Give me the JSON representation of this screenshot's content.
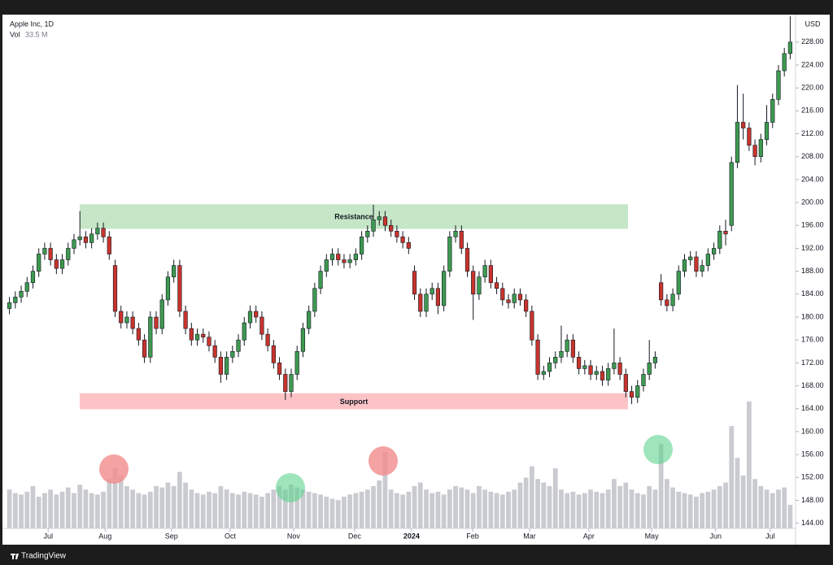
{
  "header": {
    "symbol": "Apple Inc, 1D",
    "vol_label": "Vol",
    "vol_value": "33.5 M",
    "currency": "USD"
  },
  "footer": {
    "brand": "TradingView"
  },
  "chart_data": {
    "type": "candlestick",
    "ylim": [
      143.1,
      232.8
    ],
    "yticks": [
      {
        "value": 144,
        "label": "144.00"
      },
      {
        "value": 148,
        "label": "148.00"
      },
      {
        "value": 152,
        "label": "152.00"
      },
      {
        "value": 156,
        "label": "156.00"
      },
      {
        "value": 160,
        "label": "160.00"
      },
      {
        "value": 164,
        "label": "164.00"
      },
      {
        "value": 168,
        "label": "168.00"
      },
      {
        "value": 172,
        "label": "172.00"
      },
      {
        "value": 176,
        "label": "176.00"
      },
      {
        "value": 180,
        "label": "180.00"
      },
      {
        "value": 184,
        "label": "184.00"
      },
      {
        "value": 188,
        "label": "188.00"
      },
      {
        "value": 192,
        "label": "192.00"
      },
      {
        "value": 196,
        "label": "196.00"
      },
      {
        "value": 200,
        "label": "200.00"
      },
      {
        "value": 204,
        "label": "204.00"
      },
      {
        "value": 208,
        "label": "208.00"
      },
      {
        "value": 212,
        "label": "212.00"
      },
      {
        "value": 216,
        "label": "216.00"
      },
      {
        "value": 220,
        "label": "220.00"
      },
      {
        "value": 224,
        "label": "224.00"
      },
      {
        "value": 228,
        "label": "228.00"
      }
    ],
    "xlim": [
      0,
      134
    ],
    "xticks": [
      {
        "value": 6.6,
        "label": "Jul"
      },
      {
        "value": 16.3,
        "label": "Aug"
      },
      {
        "value": 27.6,
        "label": "Sep"
      },
      {
        "value": 37.6,
        "label": "Oct"
      },
      {
        "value": 48.4,
        "label": "Nov"
      },
      {
        "value": 58.8,
        "label": "Dec"
      },
      {
        "value": 68.5,
        "label": "2024"
      },
      {
        "value": 78.9,
        "label": "Feb"
      },
      {
        "value": 88.6,
        "label": "Mar"
      },
      {
        "value": 98.7,
        "label": "Apr"
      },
      {
        "value": 109.4,
        "label": "May"
      },
      {
        "value": 120.3,
        "label": "Jun"
      },
      {
        "value": 129.6,
        "label": "Jul"
      }
    ],
    "up_color": "#3d9a50",
    "down_color": "#c8342c",
    "volume_color": "#c9cbd0",
    "vlim": [
      0,
      190
    ],
    "open": [
      181.5,
      182.5,
      183.5,
      184.5,
      186,
      188,
      191,
      192,
      190,
      188.5,
      190,
      192,
      193.5,
      194,
      193,
      194.5,
      195.5,
      194,
      189,
      181,
      179,
      180,
      178,
      176,
      173,
      180,
      178,
      183,
      187,
      189,
      181,
      178,
      176,
      177,
      176.5,
      175,
      173,
      170,
      173,
      174,
      176,
      179,
      181,
      180,
      177,
      175,
      172,
      170,
      167,
      170,
      174,
      178,
      181,
      185,
      188,
      190,
      191,
      190,
      189.5,
      190,
      191,
      194,
      195,
      197,
      197.5,
      196,
      195,
      194,
      193,
      188,
      184,
      181,
      184,
      185,
      182,
      188,
      194,
      195,
      192,
      188,
      184,
      187,
      189,
      186,
      185,
      183,
      182.5,
      184,
      183,
      181,
      176,
      170,
      170.5,
      172,
      173,
      174,
      176,
      173,
      171,
      171.5,
      170,
      170.5,
      169,
      171,
      172,
      170,
      167,
      166,
      168,
      170,
      172,
      186,
      183,
      182,
      184,
      188,
      190,
      190.5,
      188,
      189,
      191,
      192,
      195,
      196,
      207,
      214,
      213,
      210,
      208,
      211,
      214,
      218,
      223,
      226
    ],
    "high": [
      183.5,
      184.5,
      185.5,
      187,
      189,
      192,
      193,
      193,
      191,
      191,
      193,
      194.5,
      198.5,
      195,
      195.5,
      196.5,
      196.5,
      195,
      190,
      182,
      181,
      181,
      179,
      177,
      181,
      181,
      184,
      188,
      190,
      190,
      182,
      179,
      178,
      178,
      177.5,
      176,
      174,
      174,
      175,
      177,
      180,
      182,
      182,
      181,
      178,
      176,
      173,
      171,
      171,
      175,
      179,
      182,
      186,
      189,
      191,
      192,
      192,
      191,
      191,
      192,
      195,
      196,
      199.6,
      198.5,
      198.5,
      197,
      196,
      195,
      194,
      189,
      185,
      185,
      186,
      186,
      189,
      195,
      196,
      196,
      193,
      189,
      188,
      190,
      190,
      187,
      186,
      184,
      185,
      185,
      184,
      182,
      177,
      171.5,
      173,
      174,
      178.5,
      177,
      177,
      174,
      172.5,
      172.5,
      171.5,
      171.5,
      172,
      178,
      173,
      171,
      168,
      169,
      171,
      176,
      174,
      187.5,
      184,
      185,
      189,
      191,
      191.5,
      191.5,
      190,
      192,
      193,
      196,
      197,
      208,
      220.5,
      219,
      214,
      211,
      212,
      217,
      219,
      224,
      227,
      232.5
    ],
    "low": [
      180.5,
      181.5,
      182.5,
      183.5,
      185,
      187,
      190,
      189,
      187.5,
      187.5,
      189,
      191,
      192.5,
      192,
      192,
      193.5,
      193,
      190,
      180,
      178,
      178,
      177,
      175,
      172,
      172,
      177,
      177,
      182,
      186,
      180,
      177,
      175,
      175,
      175.5,
      174,
      172,
      168.5,
      169,
      172,
      173,
      175,
      178,
      179,
      176,
      174,
      171,
      169,
      165.5,
      166,
      169,
      173,
      177,
      180,
      184,
      187,
      189,
      189,
      188.5,
      188.5,
      189,
      190,
      193,
      194,
      196,
      195,
      194,
      193,
      192,
      191,
      183,
      180,
      180,
      183,
      180.5,
      181,
      187,
      193,
      191,
      187,
      179.5,
      183,
      186,
      185,
      184,
      182,
      181.5,
      181.5,
      182,
      180,
      175,
      169,
      169,
      169.5,
      171,
      172,
      173,
      172,
      170,
      170,
      169,
      169,
      168,
      168,
      170,
      169,
      166,
      164.8,
      165,
      167,
      169,
      171,
      182,
      181,
      181,
      183,
      187,
      189,
      187,
      187,
      188,
      190,
      191,
      192.5,
      195,
      206,
      211,
      209,
      206.5,
      207,
      210,
      213,
      217,
      222,
      225
    ],
    "close": [
      182.5,
      183.5,
      184.5,
      186,
      188,
      191,
      192,
      190,
      188.5,
      190,
      192,
      193.5,
      194,
      193,
      194.5,
      195.5,
      194,
      191,
      181,
      179,
      180,
      178,
      176,
      173,
      180,
      178,
      183,
      187,
      189,
      181,
      178,
      176,
      177,
      176.5,
      175,
      173,
      170,
      173,
      174,
      176,
      179,
      181,
      180,
      177,
      175,
      172,
      170,
      167,
      170,
      174,
      178,
      181,
      185,
      188,
      190,
      191,
      190,
      189.5,
      190,
      191,
      194,
      195,
      197,
      197.5,
      196,
      195,
      194,
      193,
      192,
      184,
      181,
      184,
      185,
      182,
      188,
      194,
      195,
      192,
      188,
      184,
      187,
      189,
      186,
      185,
      183,
      182.5,
      184,
      183,
      181,
      176,
      170,
      170.5,
      172,
      173,
      174,
      176,
      173,
      171,
      171.5,
      170,
      170.5,
      169,
      171,
      172,
      170,
      167,
      166,
      168,
      170,
      172,
      173,
      183,
      182,
      184,
      188,
      190,
      190.5,
      188,
      189,
      191,
      192,
      195,
      194.5,
      207,
      214,
      213,
      210,
      208,
      211,
      214,
      218,
      223,
      226,
      228
    ],
    "volume": [
      55,
      50,
      48,
      52,
      60,
      45,
      50,
      55,
      48,
      52,
      58,
      50,
      62,
      55,
      50,
      48,
      52,
      70,
      85,
      75,
      60,
      55,
      50,
      48,
      52,
      60,
      58,
      65,
      60,
      80,
      65,
      55,
      50,
      48,
      52,
      50,
      60,
      55,
      50,
      48,
      52,
      50,
      48,
      45,
      50,
      55,
      60,
      55,
      62,
      58,
      55,
      52,
      50,
      48,
      45,
      42,
      40,
      45,
      48,
      50,
      52,
      55,
      60,
      68,
      108,
      55,
      50,
      48,
      52,
      60,
      65,
      55,
      50,
      52,
      48,
      55,
      60,
      58,
      55,
      50,
      60,
      55,
      52,
      50,
      48,
      52,
      55,
      65,
      72,
      88,
      70,
      65,
      60,
      85,
      55,
      50,
      52,
      48,
      50,
      55,
      52,
      50,
      55,
      70,
      60,
      65,
      55,
      50,
      48,
      60,
      55,
      120,
      70,
      58,
      52,
      50,
      48,
      45,
      50,
      52,
      55,
      60,
      65,
      145,
      100,
      75,
      180,
      70,
      60,
      55,
      50,
      55,
      58,
      33.5
    ],
    "zones": [
      {
        "label": "Resistance",
        "top": 199.7,
        "bottom": 195.4,
        "color": "#c5e6c7"
      },
      {
        "label": "Support",
        "top": 166.7,
        "bottom": 163.9,
        "color": "#fcc3c6"
      }
    ]
  }
}
